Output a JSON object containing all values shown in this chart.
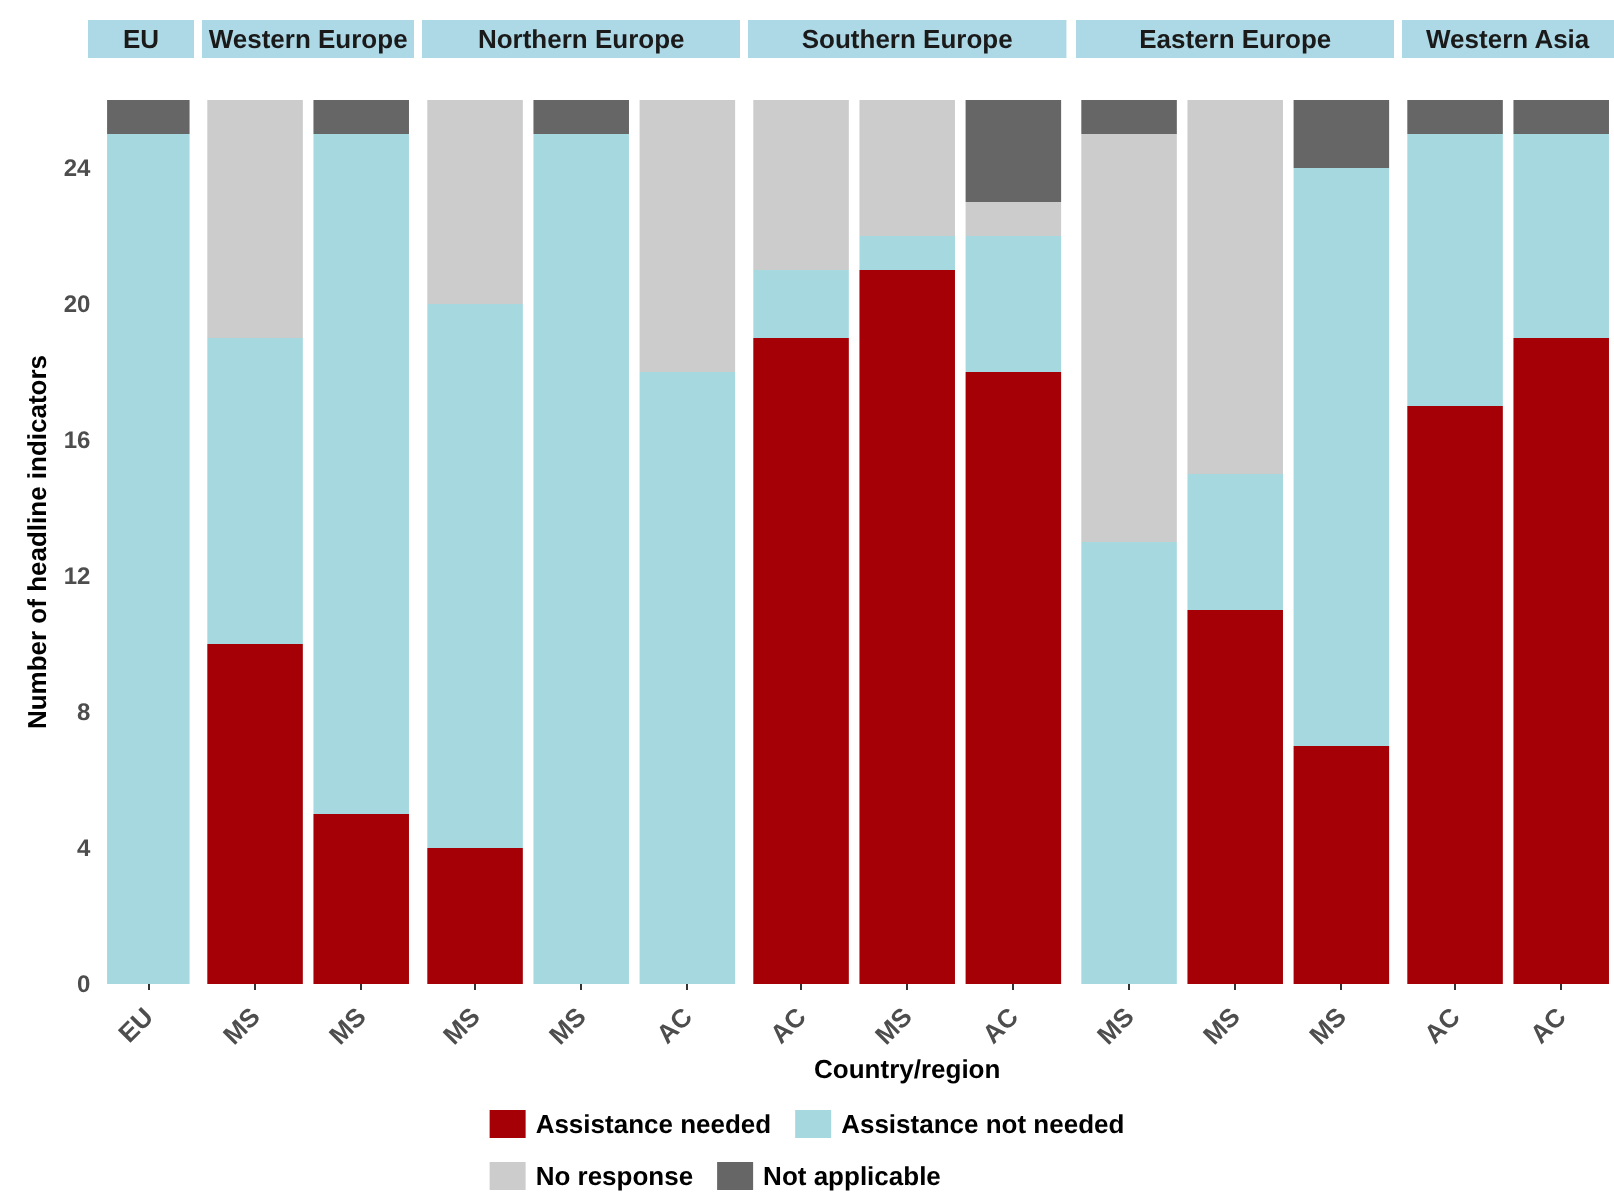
{
  "chart_data": [
    {
      "type": "bar",
      "title": "EU",
      "stacked": true,
      "categories": [
        "EU"
      ],
      "ylabel": "Number of headline indicators",
      "ylim": [
        0,
        26
      ],
      "yticks": [
        0,
        4,
        8,
        12,
        16,
        20,
        24
      ],
      "grid": false,
      "legend": "bottom",
      "series": [
        {
          "name": "Assistance needed",
          "color": "#a50005",
          "values": [
            0
          ]
        },
        {
          "name": "Assistance not needed",
          "color": "#a5d9df",
          "values": [
            25
          ]
        },
        {
          "name": "No response",
          "color": "#cccccc",
          "values": [
            0
          ]
        },
        {
          "name": "Not applicable",
          "color": "#666666",
          "values": [
            1
          ]
        }
      ]
    },
    {
      "type": "bar",
      "title": "Western Europe",
      "stacked": true,
      "categories": [
        "MS",
        "MS"
      ],
      "ylim": [
        0,
        26
      ],
      "yticks": [
        0,
        4,
        8,
        12,
        16,
        20,
        24
      ],
      "tick_labels": "x",
      "series": [
        {
          "color": "#a50005",
          "values": [
            10,
            5
          ]
        },
        {
          "color": "#a5d9df",
          "values": [
            9,
            20
          ]
        },
        {
          "color": "#cccccc",
          "values": [
            7,
            0
          ]
        },
        {
          "color": "#666666",
          "values": [
            0,
            1
          ]
        }
      ]
    },
    {
      "type": "bar",
      "title": "Northern Europe",
      "stacked": true,
      "categories": [
        "MS",
        "MS",
        "AC"
      ],
      "ylim": [
        0,
        26
      ],
      "yticks": [
        0,
        4,
        8,
        12,
        16,
        20,
        24
      ],
      "tick_labels": "x",
      "series": [
        {
          "color": "#a50005",
          "values": [
            4,
            0,
            0
          ]
        },
        {
          "color": "#a5d9df",
          "values": [
            16,
            25,
            18
          ]
        },
        {
          "color": "#cccccc",
          "values": [
            6,
            0,
            8
          ]
        },
        {
          "color": "#666666",
          "values": [
            0,
            1,
            0
          ]
        }
      ]
    },
    {
      "type": "bar",
      "title": "Southern Europe",
      "xlabel": "Country/region",
      "stacked": true,
      "categories": [
        "AC",
        "MS",
        "AC"
      ],
      "ylim": [
        0,
        26
      ],
      "yticks": [
        0,
        4,
        8,
        12,
        16,
        20,
        24
      ],
      "tick_labels": "x",
      "series": [
        {
          "color": "#a50005",
          "values": [
            19,
            21,
            18
          ]
        },
        {
          "color": "#a5d9df",
          "values": [
            2,
            1,
            4
          ]
        },
        {
          "color": "#cccccc",
          "values": [
            5,
            4,
            1
          ]
        },
        {
          "color": "#666666",
          "values": [
            0,
            0,
            3
          ]
        }
      ]
    },
    {
      "type": "bar",
      "title": "Eastern Europe",
      "stacked": true,
      "categories": [
        "MS",
        "MS",
        "MS"
      ],
      "ylim": [
        0,
        26
      ],
      "yticks": [
        0,
        4,
        8,
        12,
        16,
        20,
        24
      ],
      "tick_labels": "x",
      "series": [
        {
          "color": "#a50005",
          "values": [
            0,
            11,
            7
          ]
        },
        {
          "color": "#a5d9df",
          "values": [
            13,
            4,
            17
          ]
        },
        {
          "color": "#cccccc",
          "values": [
            12,
            11,
            0
          ]
        },
        {
          "color": "#666666",
          "values": [
            1,
            0,
            2
          ]
        }
      ]
    },
    {
      "type": "bar",
      "title": "Western Asia",
      "stacked": true,
      "categories": [
        "AC",
        "AC"
      ],
      "ylim": [
        0,
        26
      ],
      "yticks": [
        0,
        4,
        8,
        12,
        16,
        20,
        24
      ],
      "tick_labels": "x",
      "series": [
        {
          "color": "#a50005",
          "values": [
            17,
            19
          ]
        },
        {
          "color": "#a5d9df",
          "values": [
            8,
            6
          ]
        },
        {
          "color": "#cccccc",
          "values": [
            0,
            0
          ]
        },
        {
          "color": "#666666",
          "values": [
            1,
            1
          ]
        }
      ]
    }
  ]
}
